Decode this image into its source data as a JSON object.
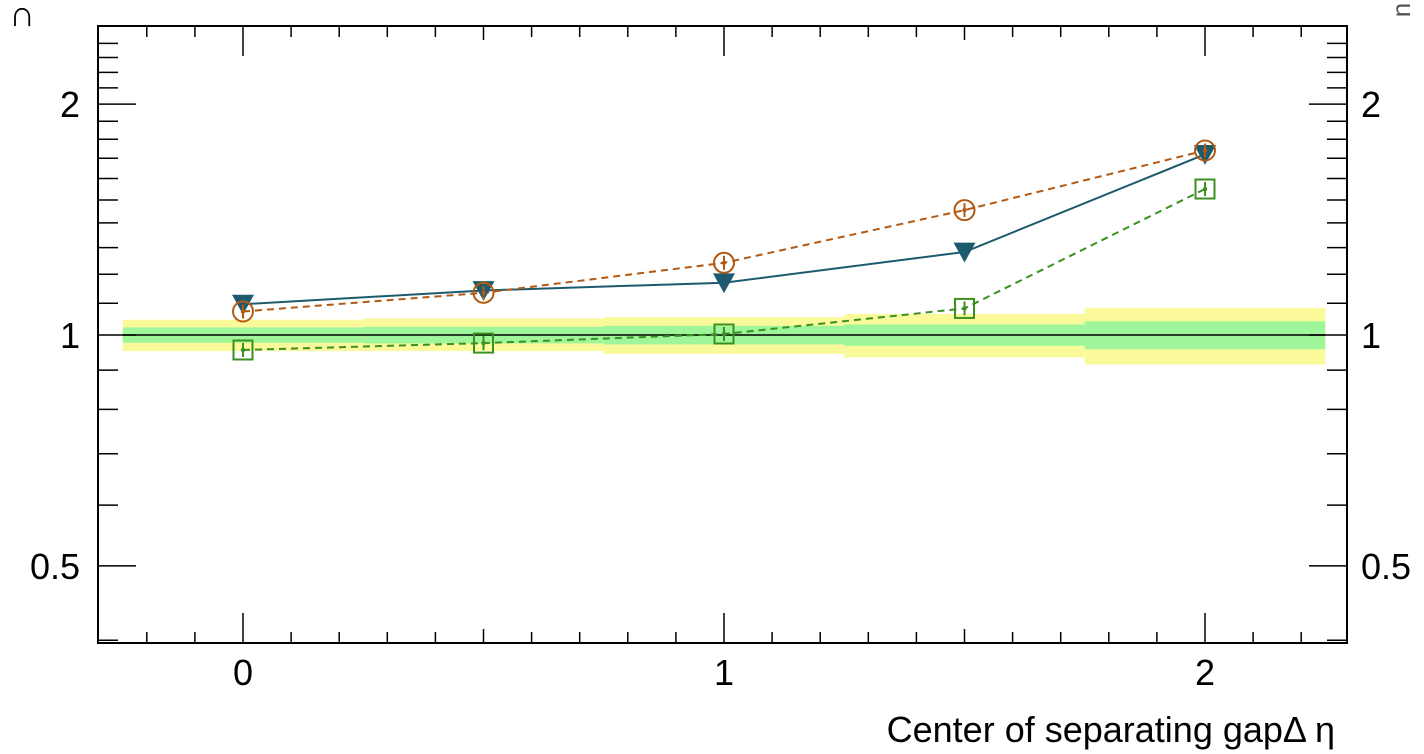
{
  "chart_data": {
    "type": "line",
    "xlabel": "Center of separating gapΔ η",
    "ylabel": "",
    "xlim": [
      -0.3,
      2.27
    ],
    "ylim": [
      0.4,
      2.5
    ],
    "y_scale": "log",
    "grid": false,
    "x_ticks": [
      {
        "value": 0,
        "label": "0"
      },
      {
        "value": 1,
        "label": "1"
      },
      {
        "value": 2,
        "label": "2"
      }
    ],
    "y_ticks": [
      {
        "value": 0.5,
        "label": "0.5"
      },
      {
        "value": 1,
        "label": "1"
      },
      {
        "value": 2,
        "label": "2"
      }
    ],
    "top_cut_label": "∩",
    "right_cut_label": "n",
    "reference_line": 1,
    "bands": [
      {
        "x0": -0.25,
        "x1": 0.25,
        "inner": [
          0.977,
          1.023
        ],
        "outer": [
          0.953,
          1.047
        ]
      },
      {
        "x0": 0.25,
        "x1": 0.75,
        "inner": [
          0.975,
          1.025
        ],
        "outer": [
          0.953,
          1.051
        ]
      },
      {
        "x0": 0.75,
        "x1": 1.25,
        "inner": [
          0.972,
          1.028
        ],
        "outer": [
          0.945,
          1.055
        ]
      },
      {
        "x0": 1.25,
        "x1": 1.75,
        "inner": [
          0.968,
          1.032
        ],
        "outer": [
          0.935,
          1.065
        ]
      },
      {
        "x0": 1.75,
        "x1": 2.25,
        "inner": [
          0.958,
          1.042
        ],
        "outer": [
          0.915,
          1.085
        ]
      }
    ],
    "band_colors": {
      "inner": "#9ff59a",
      "outer": "#fafa9a"
    },
    "series": [
      {
        "marker": "triangle-down",
        "line": "solid",
        "color": "#1e5a6e",
        "x": [
          0,
          0.5,
          1,
          1.5,
          2
        ],
        "y": [
          1.097,
          1.143,
          1.17,
          1.283,
          1.72
        ]
      },
      {
        "marker": "open-circle",
        "line": "dashed",
        "color": "#b25a14",
        "x": [
          0,
          0.5,
          1,
          1.5,
          2
        ],
        "y": [
          1.073,
          1.135,
          1.242,
          1.455,
          1.74
        ]
      },
      {
        "marker": "open-square",
        "line": "dashed",
        "color": "#3a9020",
        "x": [
          0,
          0.5,
          1,
          1.5,
          2
        ],
        "y": [
          0.956,
          0.976,
          1.003,
          1.083,
          1.55
        ]
      }
    ]
  }
}
